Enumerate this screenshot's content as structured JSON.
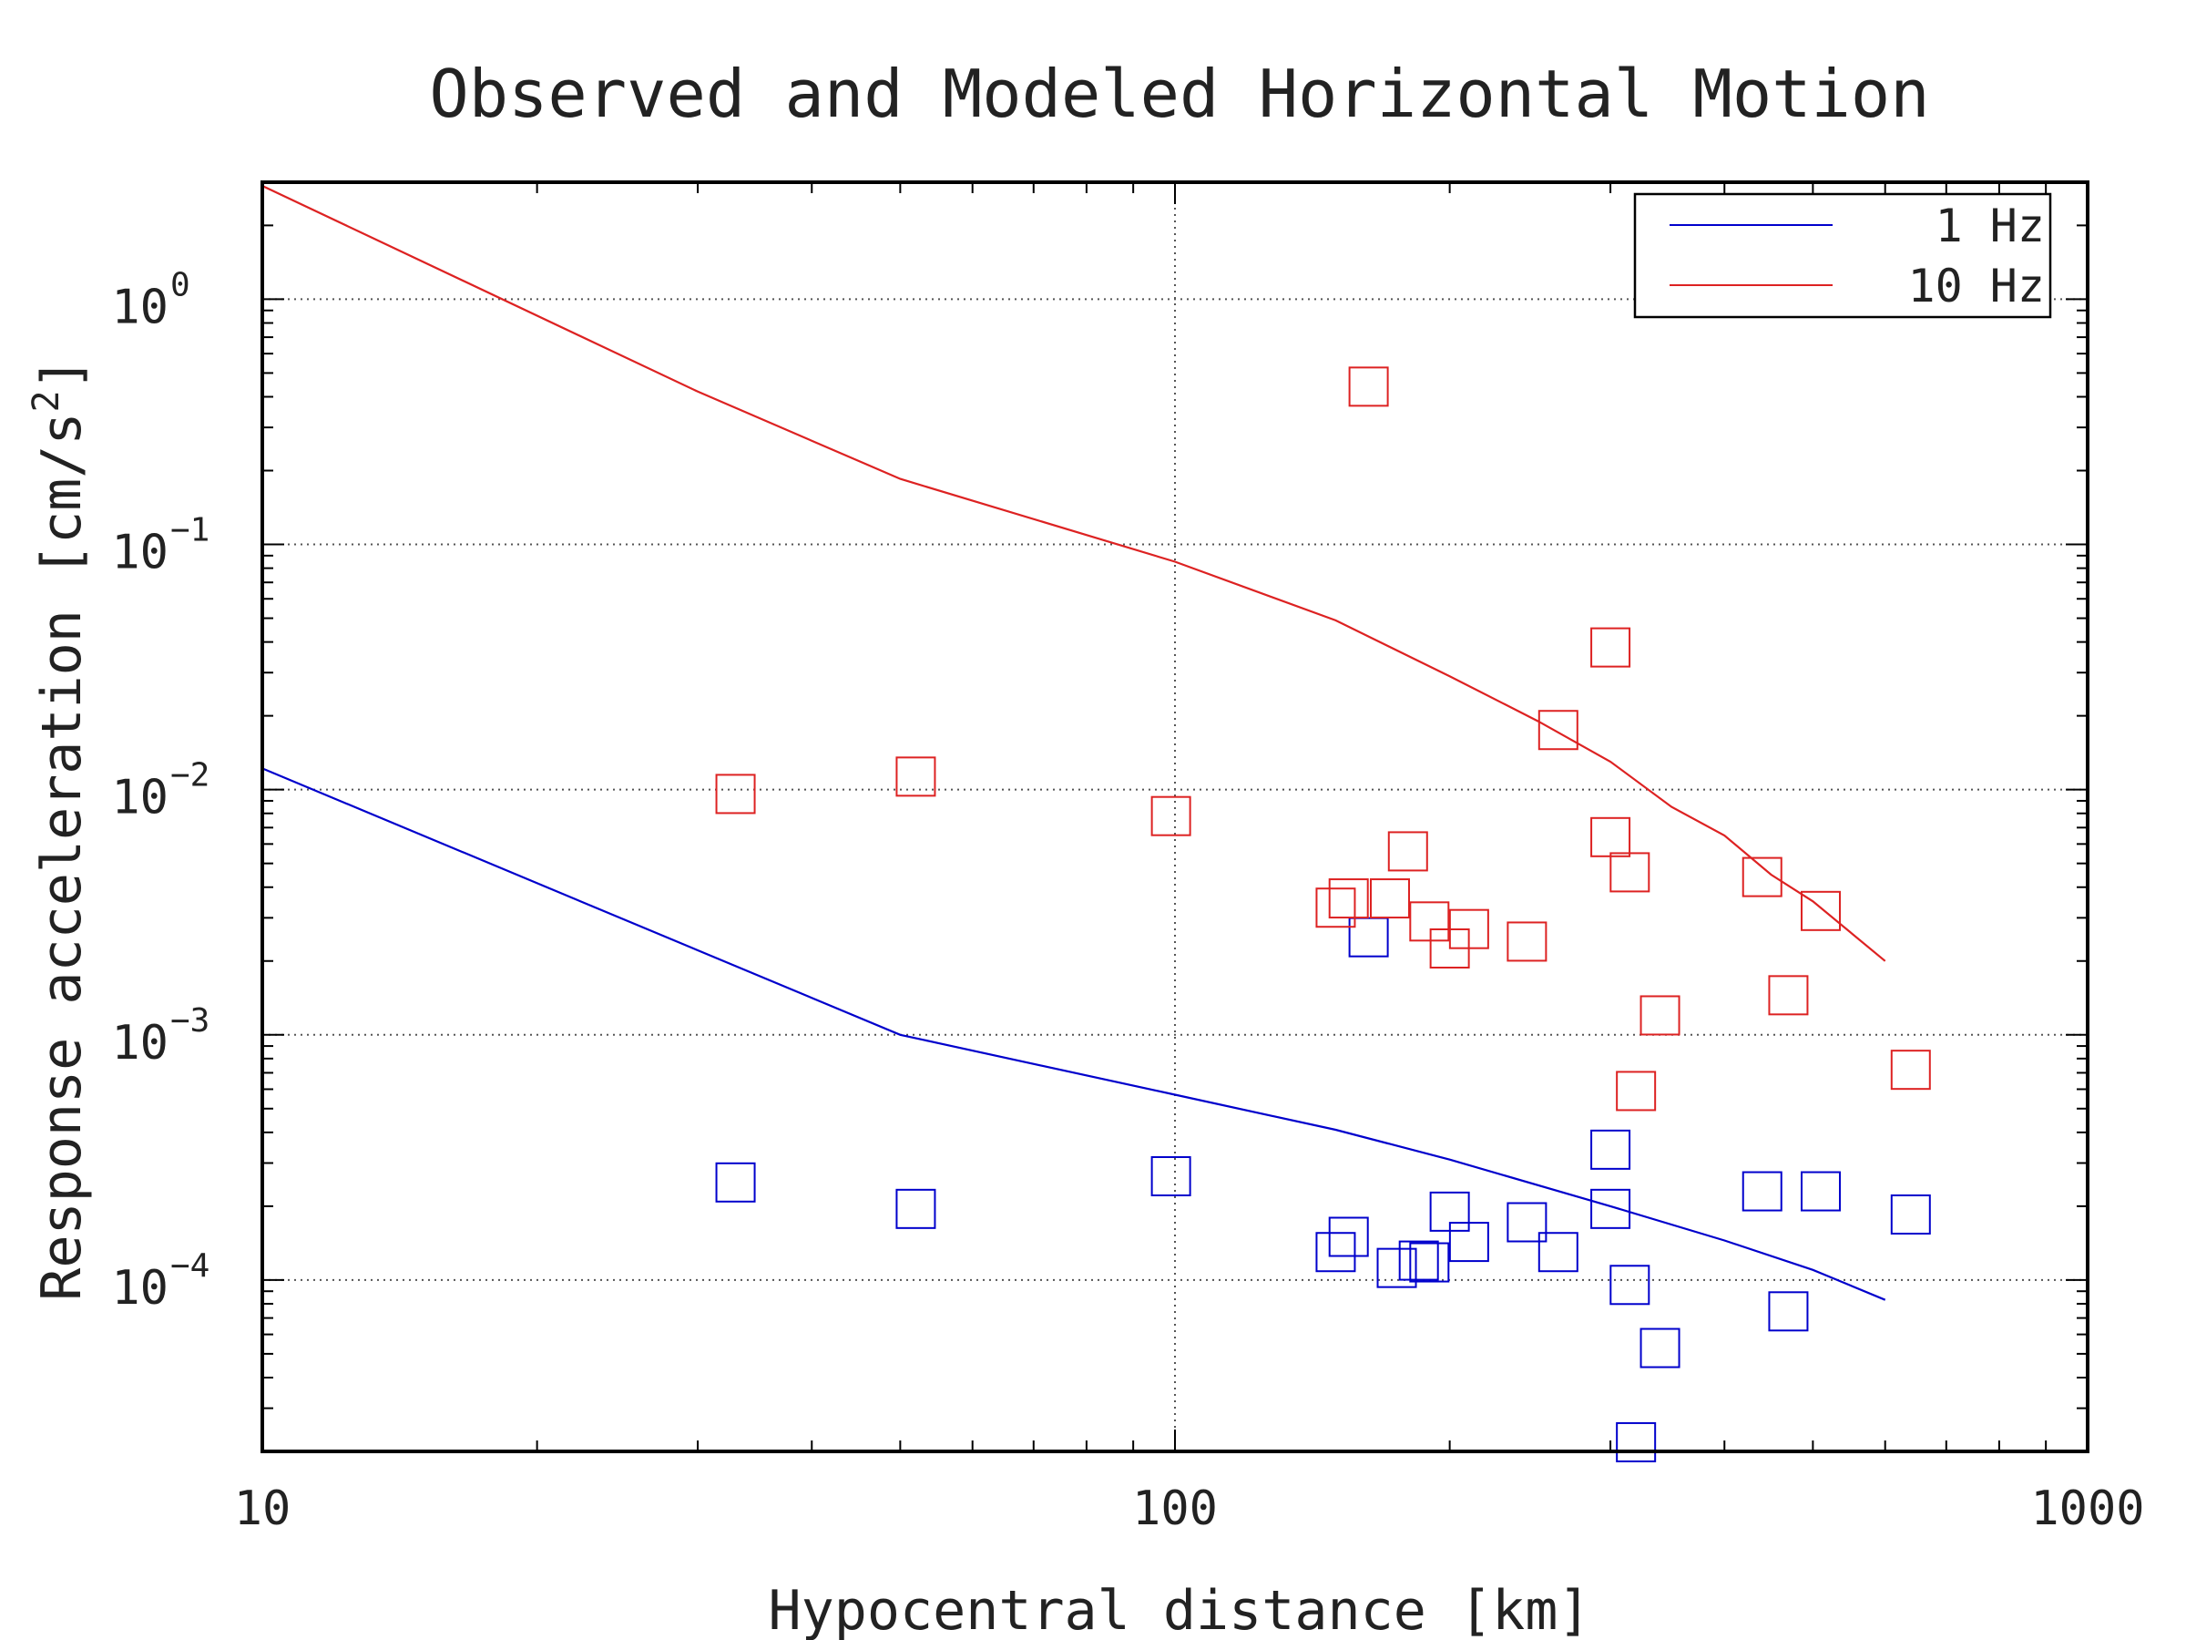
{
  "chart_data": {
    "type": "scatter",
    "title": "Observed and Modeled Horizontal Motion",
    "xlabel": "Hypocentral distance [km]",
    "ylabel": {
      "prefix": "Response acceleration [cm/s",
      "superscript": "2",
      "suffix": "]"
    },
    "xscale": "log",
    "yscale": "log",
    "xlim": [
      10,
      1000
    ],
    "ylim": [
      2e-05,
      3.0
    ],
    "x_ticks": [
      {
        "value": 10,
        "label": "10"
      },
      {
        "value": 100,
        "label": "100"
      },
      {
        "value": 1000,
        "label": "1000"
      }
    ],
    "y_ticks": [
      {
        "value": 1,
        "base": "10",
        "exp": "0"
      },
      {
        "value": 0.1,
        "base": "10",
        "exp": "−1"
      },
      {
        "value": 0.01,
        "base": "10",
        "exp": "−2"
      },
      {
        "value": 0.001,
        "base": "10",
        "exp": "−3"
      },
      {
        "value": 0.0001,
        "base": "10",
        "exp": "−4"
      }
    ],
    "grid": true,
    "legend_position": "top-right",
    "series": [
      {
        "name": "1 Hz",
        "color": "#0000cc",
        "model": {
          "x": [
            10,
            50,
            100,
            150,
            200,
            300,
            400,
            500,
            600
          ],
          "y": [
            0.0122,
            0.001,
            0.00057,
            0.00041,
            0.00031,
            0.0002,
            0.000145,
            0.00011,
            8.3e-05
          ]
        },
        "observed": {
          "x": [
            33,
            52,
            99,
            150,
            155,
            163,
            175,
            185,
            190,
            200,
            210,
            243,
            263,
            300,
            300,
            315,
            320,
            340,
            440,
            470,
            510,
            640
          ],
          "y": [
            0.00025,
            0.000195,
            0.000265,
            0.00013,
            0.00015,
            0.0025,
            0.000112,
            0.00012,
            0.000118,
            0.00019,
            0.000143,
            0.000172,
            0.00013,
            0.00034,
            0.000195,
            9.55e-05,
            2.18e-05,
            5.28e-05,
            0.00023,
            7.45e-05,
            0.00023,
            0.000185
          ]
        }
      },
      {
        "name": "10 Hz",
        "color": "#dd2222",
        "model": {
          "x": [
            10,
            30,
            50,
            100,
            150,
            200,
            250,
            300,
            350,
            400,
            450,
            500,
            600
          ],
          "y": [
            2.9,
            0.42,
            0.185,
            0.085,
            0.049,
            0.029,
            0.019,
            0.013,
            0.0085,
            0.0065,
            0.0045,
            0.0035,
            0.002
          ]
        },
        "observed": {
          "x": [
            33,
            52,
            99,
            150,
            155,
            163,
            172,
            180,
            190,
            200,
            210,
            243,
            263,
            300,
            300,
            315,
            320,
            340,
            440,
            470,
            510,
            640
          ],
          "y": [
            0.0096,
            0.0113,
            0.0078,
            0.0033,
            0.0036,
            0.44,
            0.0036,
            0.0056,
            0.0029,
            0.00225,
            0.0027,
            0.0024,
            0.0175,
            0.038,
            0.0064,
            0.0046,
            0.00059,
            0.0012,
            0.0044,
            0.00145,
            0.0032,
            0.00072
          ]
        }
      }
    ]
  }
}
